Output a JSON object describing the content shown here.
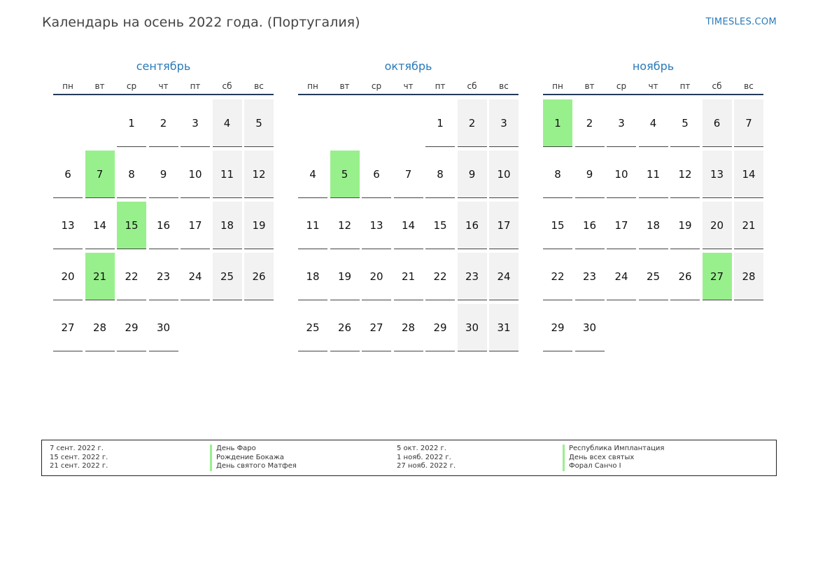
{
  "header": {
    "title": "Календарь на осень 2022 года. (Португалия)",
    "brand": "TIMESLES.COM"
  },
  "colors": {
    "accent": "#2a7ab8",
    "holiday": "#98f08c",
    "weekend": "#f2f2f2",
    "rule": "#243a5a"
  },
  "weekday_labels": [
    "пн",
    "вт",
    "ср",
    "чт",
    "пт",
    "сб",
    "вс"
  ],
  "months": [
    {
      "name": "сентябрь",
      "first_weekday": 3,
      "days": 30,
      "holidays": [
        7,
        15,
        21
      ]
    },
    {
      "name": "октябрь",
      "first_weekday": 5,
      "days": 31,
      "holidays": [
        5
      ]
    },
    {
      "name": "ноябрь",
      "first_weekday": 1,
      "days": 30,
      "holidays": [
        1,
        27
      ]
    }
  ],
  "legend": {
    "left": {
      "dates": [
        "7 сент. 2022 г.",
        "15 сент. 2022 г.",
        "21 сент. 2022 г."
      ],
      "names": [
        "День Фаро",
        "Рождение Бокажа",
        "День святого Матфея"
      ]
    },
    "right": {
      "dates": [
        "5 окт. 2022 г.",
        "1 нояб. 2022 г.",
        "27 нояб. 2022 г."
      ],
      "names": [
        "Республика Имплантация",
        "День всех святых",
        "Форал Санчо I"
      ]
    }
  }
}
